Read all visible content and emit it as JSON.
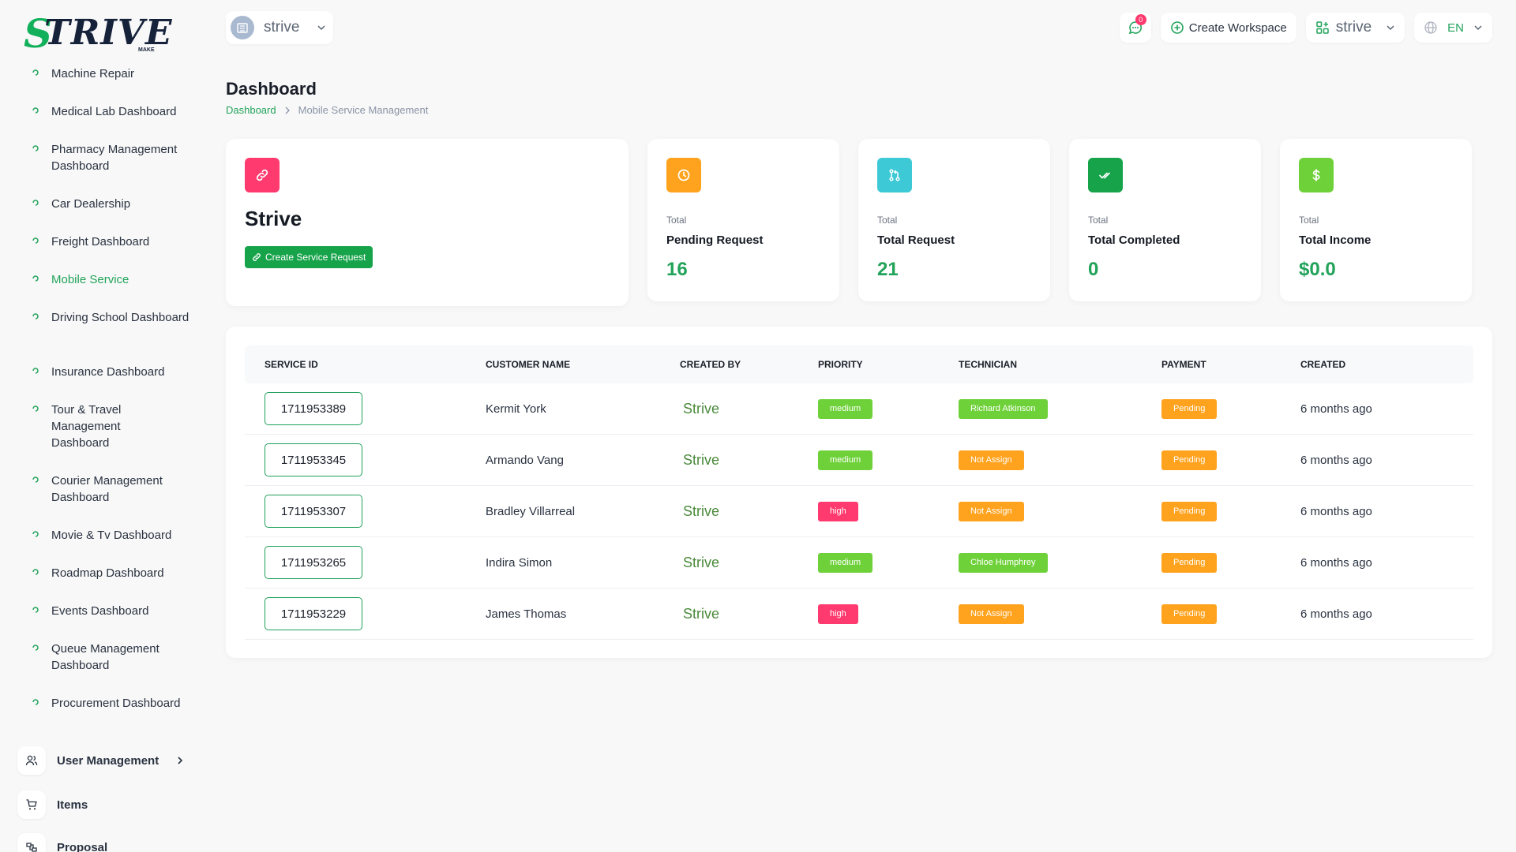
{
  "brand": {
    "logo_initial": "S",
    "logo_text": "TRIVE",
    "logo_sub": "MAKE"
  },
  "sidebar": {
    "sub_items": [
      {
        "label": "Machine Repair"
      },
      {
        "label": "Medical Lab Dashboard"
      },
      {
        "label": "Pharmacy Management Dashboard"
      },
      {
        "label": "Car Dealership"
      },
      {
        "label": "Freight Dashboard"
      },
      {
        "label": "Mobile Service",
        "active": true
      },
      {
        "label": "Driving School Dashboard"
      },
      {
        "label": "Insurance Dashboard"
      },
      {
        "label": "Tour & Travel Management Dashboard"
      },
      {
        "label": "Courier Management Dashboard"
      },
      {
        "label": "Movie & Tv Dashboard"
      },
      {
        "label": "Roadmap Dashboard"
      },
      {
        "label": "Events Dashboard"
      },
      {
        "label": "Queue Management Dashboard"
      },
      {
        "label": "Procurement Dashboard"
      }
    ],
    "main_items": [
      {
        "label": "User Management",
        "icon": "users-icon"
      },
      {
        "label": "Items",
        "icon": "cart-icon"
      },
      {
        "label": "Proposal",
        "icon": "proposal-icon"
      }
    ]
  },
  "header": {
    "workspace": "strive",
    "chat_count": "0",
    "create_workspace": "Create Workspace",
    "workspace_menu": "strive",
    "language": "EN"
  },
  "page": {
    "title": "Dashboard",
    "breadcrumb_root": "Dashboard",
    "breadcrumb_current": "Mobile Service Management"
  },
  "welcome": {
    "title": "Strive",
    "button": "Create Service Request"
  },
  "stats": [
    {
      "small": "Total",
      "name": "Pending Request",
      "value": "16",
      "color": "#ffa21d",
      "icon": "clock-icon"
    },
    {
      "small": "Total",
      "name": "Total Request",
      "value": "21",
      "color": "#3ec9d6",
      "icon": "pull-request-icon"
    },
    {
      "small": "Total",
      "name": "Total Completed",
      "value": "0",
      "color": "#16a34a",
      "icon": "double-check-icon"
    },
    {
      "small": "Total",
      "name": "Total Income",
      "value": "$0.0",
      "color": "#6fd13a",
      "icon": "dollar-icon"
    }
  ],
  "table": {
    "headers": [
      "SERVICE ID",
      "CUSTOMER NAME",
      "CREATED BY",
      "PRIORITY",
      "TECHNICIAN",
      "PAYMENT",
      "CREATED"
    ],
    "rows": [
      {
        "id": "1711953389",
        "customer": "Kermit York",
        "created_by": "Strive",
        "priority": "medium",
        "technician": "Richard Atkinson",
        "payment": "Pending",
        "created": "6 months ago"
      },
      {
        "id": "1711953345",
        "customer": "Armando Vang",
        "created_by": "Strive",
        "priority": "medium",
        "technician": "Not Assign",
        "payment": "Pending",
        "created": "6 months ago"
      },
      {
        "id": "1711953307",
        "customer": "Bradley Villarreal",
        "created_by": "Strive",
        "priority": "high",
        "technician": "Not Assign",
        "payment": "Pending",
        "created": "6 months ago"
      },
      {
        "id": "1711953265",
        "customer": "Indira Simon",
        "created_by": "Strive",
        "priority": "medium",
        "technician": "Chloe Humphrey",
        "payment": "Pending",
        "created": "6 months ago"
      },
      {
        "id": "1711953229",
        "customer": "James Thomas",
        "created_by": "Strive",
        "priority": "high",
        "technician": "Not Assign",
        "payment": "Pending",
        "created": "6 months ago"
      }
    ]
  },
  "colors": {
    "accent": "#22a35a",
    "primary_button": "#16a34a",
    "welcome_icon": "#ff3a6e",
    "medium": "#6fd13a",
    "high": "#ff3a6e",
    "pending": "#ffa21d"
  }
}
